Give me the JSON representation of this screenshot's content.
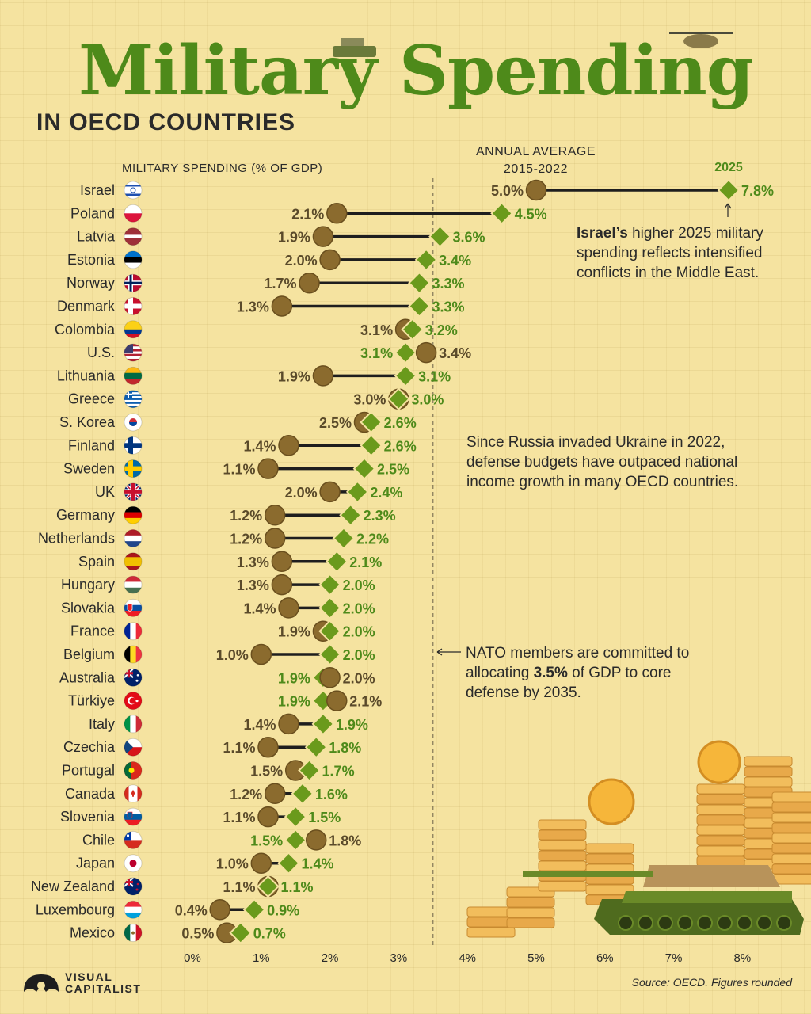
{
  "title": "Military Spending",
  "subtitle": "IN OECD COUNTRIES",
  "legend": {
    "series_a_line1": "ANNUAL AVERAGE",
    "series_a_line2": "2015-2022",
    "series_b": "2025"
  },
  "annotations": {
    "israel_bold": "Israel’s",
    "israel_rest": " higher 2025 military spending reflects intensified conflicts in the Middle East.",
    "russia": "Since Russia invaded Ukraine in 2022, defense budgets have outpaced national income growth in many OECD countries.",
    "nato_pre": "NATO members are committed to allocating ",
    "nato_bold": "3.5%",
    "nato_post": " of GDP to core defense by 2035."
  },
  "source": "Source: OECD. Figures rounded",
  "brand": {
    "line1": "VISUAL",
    "line2": "CAPITALIST"
  },
  "colors": {
    "avg": "#8b6b2e",
    "y2025": "#6a9a1c",
    "title": "#4e8a1a",
    "line": "#1e1e1e"
  },
  "chart_data": {
    "type": "dumbbell",
    "ylabel": "MILITARY SPENDING (% OF GDP)",
    "xlim": [
      0,
      8
    ],
    "xticks": [
      "0%",
      "1%",
      "2%",
      "3%",
      "4%",
      "5%",
      "6%",
      "7%",
      "8%"
    ],
    "reference_line": 3.5,
    "series": [
      {
        "name": "ANNUAL AVERAGE 2015-2022",
        "marker": "circle"
      },
      {
        "name": "2025",
        "marker": "diamond"
      }
    ],
    "countries": [
      {
        "name": "Israel",
        "avg": 5.0,
        "y2025": 7.8,
        "avg_label": "5.0%",
        "y2025_label": "7.8%",
        "flag": "israel-flag"
      },
      {
        "name": "Poland",
        "avg": 2.1,
        "y2025": 4.5,
        "avg_label": "2.1%",
        "y2025_label": "4.5%",
        "flag": "poland-flag"
      },
      {
        "name": "Latvia",
        "avg": 1.9,
        "y2025": 3.6,
        "avg_label": "1.9%",
        "y2025_label": "3.6%",
        "flag": "latvia-flag"
      },
      {
        "name": "Estonia",
        "avg": 2.0,
        "y2025": 3.4,
        "avg_label": "2.0%",
        "y2025_label": "3.4%",
        "flag": "estonia-flag"
      },
      {
        "name": "Norway",
        "avg": 1.7,
        "y2025": 3.3,
        "avg_label": "1.7%",
        "y2025_label": "3.3%",
        "flag": "norway-flag"
      },
      {
        "name": "Denmark",
        "avg": 1.3,
        "y2025": 3.3,
        "avg_label": "1.3%",
        "y2025_label": "3.3%",
        "flag": "denmark-flag"
      },
      {
        "name": "Colombia",
        "avg": 3.1,
        "y2025": 3.2,
        "avg_label": "3.1%",
        "y2025_label": "3.2%",
        "flag": "colombia-flag"
      },
      {
        "name": "U.S.",
        "avg": 3.4,
        "y2025": 3.1,
        "avg_label": "3.4%",
        "y2025_label": "3.1%",
        "flag": "us-flag"
      },
      {
        "name": "Lithuania",
        "avg": 1.9,
        "y2025": 3.1,
        "avg_label": "1.9%",
        "y2025_label": "3.1%",
        "flag": "lithuania-flag"
      },
      {
        "name": "Greece",
        "avg": 3.0,
        "y2025": 3.0,
        "avg_label": "3.0%",
        "y2025_label": "3.0%",
        "flag": "greece-flag"
      },
      {
        "name": "S. Korea",
        "avg": 2.5,
        "y2025": 2.6,
        "avg_label": "2.5%",
        "y2025_label": "2.6%",
        "flag": "south-korea-flag"
      },
      {
        "name": "Finland",
        "avg": 1.4,
        "y2025": 2.6,
        "avg_label": "1.4%",
        "y2025_label": "2.6%",
        "flag": "finland-flag"
      },
      {
        "name": "Sweden",
        "avg": 1.1,
        "y2025": 2.5,
        "avg_label": "1.1%",
        "y2025_label": "2.5%",
        "flag": "sweden-flag"
      },
      {
        "name": "UK",
        "avg": 2.0,
        "y2025": 2.4,
        "avg_label": "2.0%",
        "y2025_label": "2.4%",
        "flag": "uk-flag"
      },
      {
        "name": "Germany",
        "avg": 1.2,
        "y2025": 2.3,
        "avg_label": "1.2%",
        "y2025_label": "2.3%",
        "flag": "germany-flag"
      },
      {
        "name": "Netherlands",
        "avg": 1.2,
        "y2025": 2.2,
        "avg_label": "1.2%",
        "y2025_label": "2.2%",
        "flag": "netherlands-flag"
      },
      {
        "name": "Spain",
        "avg": 1.3,
        "y2025": 2.1,
        "avg_label": "1.3%",
        "y2025_label": "2.1%",
        "flag": "spain-flag"
      },
      {
        "name": "Hungary",
        "avg": 1.3,
        "y2025": 2.0,
        "avg_label": "1.3%",
        "y2025_label": "2.0%",
        "flag": "hungary-flag"
      },
      {
        "name": "Slovakia",
        "avg": 1.4,
        "y2025": 2.0,
        "avg_label": "1.4%",
        "y2025_label": "2.0%",
        "flag": "slovakia-flag"
      },
      {
        "name": "France",
        "avg": 1.9,
        "y2025": 2.0,
        "avg_label": "1.9%",
        "y2025_label": "2.0%",
        "flag": "france-flag"
      },
      {
        "name": "Belgium",
        "avg": 1.0,
        "y2025": 2.0,
        "avg_label": "1.0%",
        "y2025_label": "2.0%",
        "flag": "belgium-flag"
      },
      {
        "name": "Australia",
        "avg": 2.0,
        "y2025": 1.9,
        "avg_label": "2.0%",
        "y2025_label": "1.9%",
        "flag": "australia-flag"
      },
      {
        "name": "Türkiye",
        "avg": 2.1,
        "y2025": 1.9,
        "avg_label": "2.1%",
        "y2025_label": "1.9%",
        "flag": "turkiye-flag"
      },
      {
        "name": "Italy",
        "avg": 1.4,
        "y2025": 1.9,
        "avg_label": "1.4%",
        "y2025_label": "1.9%",
        "flag": "italy-flag"
      },
      {
        "name": "Czechia",
        "avg": 1.1,
        "y2025": 1.8,
        "avg_label": "1.1%",
        "y2025_label": "1.8%",
        "flag": "czechia-flag"
      },
      {
        "name": "Portugal",
        "avg": 1.5,
        "y2025": 1.7,
        "avg_label": "1.5%",
        "y2025_label": "1.7%",
        "flag": "portugal-flag"
      },
      {
        "name": "Canada",
        "avg": 1.2,
        "y2025": 1.6,
        "avg_label": "1.2%",
        "y2025_label": "1.6%",
        "flag": "canada-flag"
      },
      {
        "name": "Slovenia",
        "avg": 1.1,
        "y2025": 1.5,
        "avg_label": "1.1%",
        "y2025_label": "1.5%",
        "flag": "slovenia-flag"
      },
      {
        "name": "Chile",
        "avg": 1.8,
        "y2025": 1.5,
        "avg_label": "1.8%",
        "y2025_label": "1.5%",
        "flag": "chile-flag"
      },
      {
        "name": "Japan",
        "avg": 1.0,
        "y2025": 1.4,
        "avg_label": "1.0%",
        "y2025_label": "1.4%",
        "flag": "japan-flag"
      },
      {
        "name": "New Zealand",
        "avg": 1.1,
        "y2025": 1.1,
        "avg_label": "1.1%",
        "y2025_label": "1.1%",
        "flag": "new-zealand-flag"
      },
      {
        "name": "Luxembourg",
        "avg": 0.4,
        "y2025": 0.9,
        "avg_label": "0.4%",
        "y2025_label": "0.9%",
        "flag": "luxembourg-flag"
      },
      {
        "name": "Mexico",
        "avg": 0.5,
        "y2025": 0.7,
        "avg_label": "0.5%",
        "y2025_label": "0.7%",
        "flag": "mexico-flag"
      }
    ]
  }
}
